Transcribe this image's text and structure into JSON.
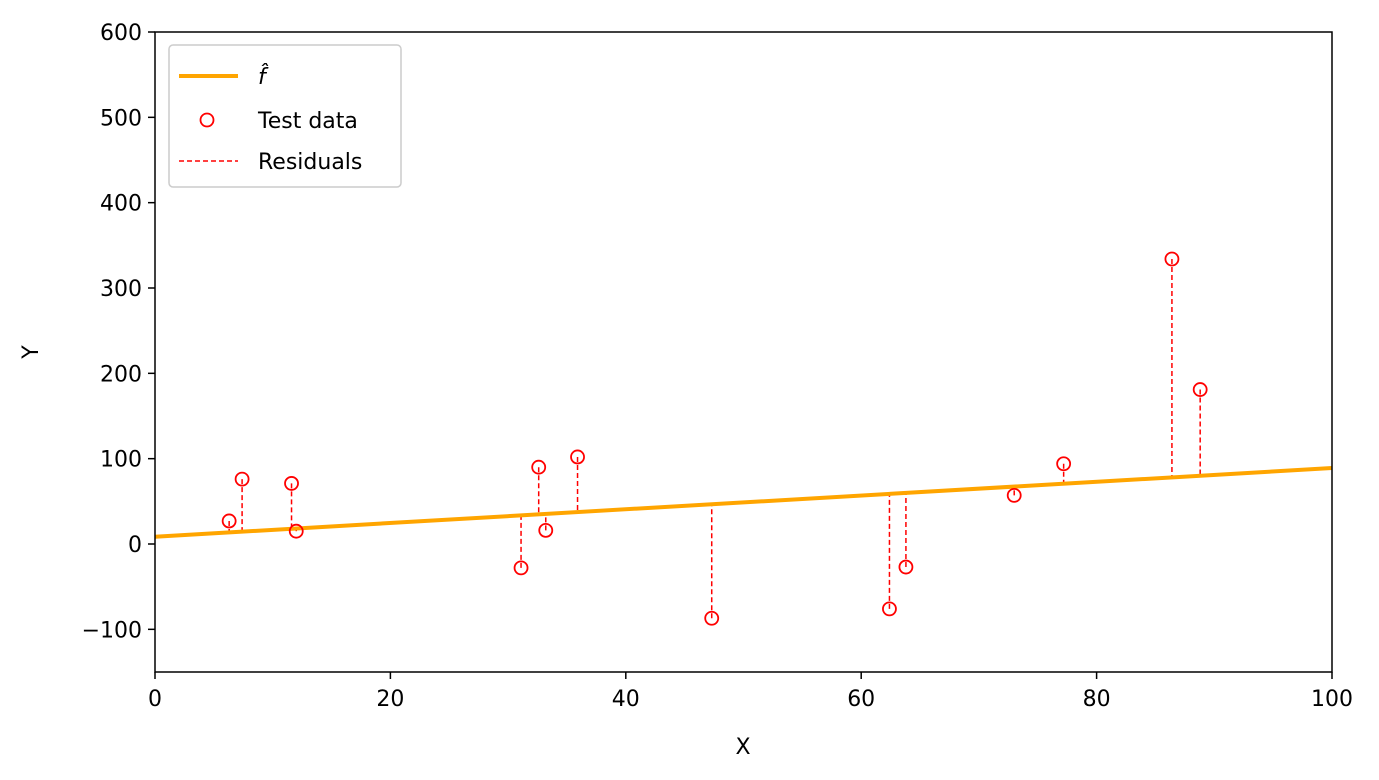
{
  "chart_data": {
    "type": "scatter",
    "xlabel": "X",
    "ylabel": "Y",
    "xlim": [
      0,
      100
    ],
    "ylim": [
      -150,
      600
    ],
    "x_ticks": [
      0,
      20,
      40,
      60,
      80,
      100
    ],
    "y_ticks": [
      -100,
      0,
      100,
      200,
      300,
      400,
      500,
      600
    ],
    "x_tick_labels": [
      "0",
      "20",
      "40",
      "60",
      "80",
      "100"
    ],
    "y_tick_labels": [
      "−100",
      "0",
      "100",
      "200",
      "300",
      "400",
      "500",
      "600"
    ],
    "grid": false,
    "legend_position": "top-left",
    "fit_line": {
      "name": "f̂",
      "color": "#ffa500",
      "intercept": 8.5,
      "slope": 0.805
    },
    "test_data": {
      "name": "Test data",
      "color": "#ff0000",
      "points": [
        {
          "x": 6.3,
          "y": 27
        },
        {
          "x": 7.4,
          "y": 76
        },
        {
          "x": 11.6,
          "y": 71
        },
        {
          "x": 12.0,
          "y": 15
        },
        {
          "x": 31.1,
          "y": -28
        },
        {
          "x": 32.6,
          "y": 90
        },
        {
          "x": 33.2,
          "y": 16
        },
        {
          "x": 35.9,
          "y": 102
        },
        {
          "x": 47.3,
          "y": -87
        },
        {
          "x": 62.4,
          "y": -76
        },
        {
          "x": 63.8,
          "y": -27
        },
        {
          "x": 73.0,
          "y": 57
        },
        {
          "x": 77.2,
          "y": 94
        },
        {
          "x": 86.4,
          "y": 334
        },
        {
          "x": 88.8,
          "y": 181
        }
      ]
    },
    "residuals": {
      "name": "Residuals",
      "color": "#ff0000"
    }
  }
}
